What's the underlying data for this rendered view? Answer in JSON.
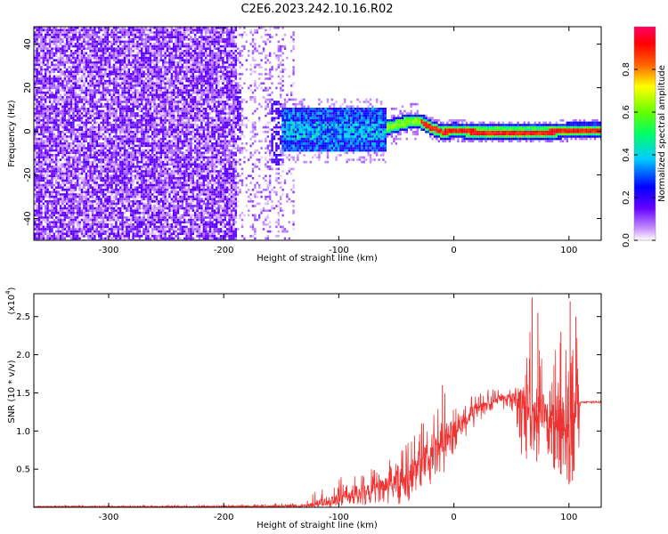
{
  "title": "C2E6.2023.242.10.16.R02",
  "chart_data": [
    {
      "type": "heatmap",
      "name": "spectrogram",
      "xlabel": "Height of straight line (km)",
      "ylabel": "Frequency (Hz)",
      "xlim": [
        -365,
        128
      ],
      "ylim": [
        -50,
        48
      ],
      "xticks": [
        -300,
        -200,
        -100,
        0,
        100
      ],
      "yticks": [
        -40,
        -20,
        0,
        20,
        40
      ],
      "colorbar": {
        "label": "Normalized spectral amplitude",
        "range": [
          0,
          1
        ],
        "ticks": [
          0.0,
          0.2,
          0.4,
          0.6,
          0.8
        ],
        "tick_labels": [
          "0.0",
          "0.2",
          "0.4",
          "0.6",
          "0.8"
        ],
        "colormap": [
          "#ffffff",
          "#cc99ff",
          "#6600ff",
          "#0000ff",
          "#00ccff",
          "#00ff66",
          "#66ff00",
          "#ffff00",
          "#ff6600",
          "#ff0000",
          "#ff0066"
        ]
      },
      "regions": [
        {
          "x": [
            -365,
            -190
          ],
          "description_values": {
            "freq_spread": [
              -50,
              48
            ],
            "amplitude": [
              0.05,
              0.3
            ]
          }
        },
        {
          "x": [
            -190,
            -130
          ],
          "description_values": {
            "freq_spread": [
              -50,
              48
            ],
            "amplitude": [
              0.02,
              0.3
            ]
          }
        },
        {
          "x": [
            -150,
            -60
          ],
          "description_values": {
            "freq_center": 0,
            "freq_halfwidth": 10,
            "amplitude": [
              0.2,
              0.55
            ]
          }
        },
        {
          "x": [
            -60,
            128
          ],
          "description_values": {
            "freq_center": 1,
            "freq_halfwidth": 3,
            "amplitude": [
              0.3,
              0.98
            ]
          }
        }
      ],
      "ridge": [
        {
          "x": -60,
          "y": 2
        },
        {
          "x": -40,
          "y": 5
        },
        {
          "x": -30,
          "y": 5
        },
        {
          "x": -20,
          "y": 2
        },
        {
          "x": -10,
          "y": 0
        },
        {
          "x": 0,
          "y": 1
        },
        {
          "x": 20,
          "y": 0
        },
        {
          "x": 40,
          "y": 0
        },
        {
          "x": 60,
          "y": 0
        },
        {
          "x": 80,
          "y": 0
        },
        {
          "x": 100,
          "y": 1
        },
        {
          "x": 128,
          "y": 1
        }
      ]
    },
    {
      "type": "line",
      "name": "snr",
      "xlabel": "Height of straight line (km)",
      "ylabel": "SNR (10 * v/v)",
      "multiplier": "(x10",
      "multiplier_exp": "4",
      "xlim": [
        -365,
        128
      ],
      "ylim": [
        0,
        2.8
      ],
      "xticks": [
        -300,
        -200,
        -100,
        0,
        100
      ],
      "yticks": [
        0.5,
        1.0,
        1.5,
        2.0,
        2.5
      ],
      "ytick_labels": [
        "0.5",
        "1.0",
        "1.5",
        "2.0",
        "2.5"
      ],
      "color": "#ee3333",
      "envelope": [
        {
          "x": -365,
          "y": 0.01,
          "lo": 0.0,
          "hi": 0.02
        },
        {
          "x": -200,
          "y": 0.01,
          "lo": 0.0,
          "hi": 0.03
        },
        {
          "x": -130,
          "y": 0.02,
          "lo": 0.0,
          "hi": 0.06
        },
        {
          "x": -120,
          "y": 0.05,
          "lo": 0.0,
          "hi": 0.25
        },
        {
          "x": -100,
          "y": 0.12,
          "lo": 0.0,
          "hi": 0.4
        },
        {
          "x": -80,
          "y": 0.2,
          "lo": 0.02,
          "hi": 0.45
        },
        {
          "x": -60,
          "y": 0.28,
          "lo": 0.03,
          "hi": 0.6
        },
        {
          "x": -40,
          "y": 0.4,
          "lo": 0.05,
          "hi": 0.9
        },
        {
          "x": -30,
          "y": 0.55,
          "lo": 0.15,
          "hi": 1.05
        },
        {
          "x": -20,
          "y": 0.75,
          "lo": 0.3,
          "hi": 1.2
        },
        {
          "x": -10,
          "y": 0.85,
          "lo": 0.4,
          "hi": 1.6
        },
        {
          "x": 0,
          "y": 1.05,
          "lo": 0.7,
          "hi": 1.35
        },
        {
          "x": 10,
          "y": 1.15,
          "lo": 0.9,
          "hi": 1.4
        },
        {
          "x": 20,
          "y": 1.3,
          "lo": 1.1,
          "hi": 1.5
        },
        {
          "x": 30,
          "y": 1.4,
          "lo": 1.25,
          "hi": 1.55
        },
        {
          "x": 50,
          "y": 1.45,
          "lo": 1.3,
          "hi": 1.55
        },
        {
          "x": 60,
          "y": 1.4,
          "lo": 0.6,
          "hi": 1.6
        },
        {
          "x": 70,
          "y": 1.35,
          "lo": 0.6,
          "hi": 2.75
        },
        {
          "x": 80,
          "y": 1.25,
          "lo": 0.7,
          "hi": 1.7
        },
        {
          "x": 90,
          "y": 1.1,
          "lo": 0.4,
          "hi": 2.3
        },
        {
          "x": 100,
          "y": 1.1,
          "lo": 0.3,
          "hi": 2.7
        },
        {
          "x": 108,
          "y": 1.2,
          "lo": 0.5,
          "hi": 2.2
        },
        {
          "x": 110,
          "y": 1.38,
          "lo": 1.36,
          "hi": 1.4
        },
        {
          "x": 128,
          "y": 1.38,
          "lo": 1.36,
          "hi": 1.4
        }
      ],
      "spikes": [
        {
          "x": -28,
          "y": 1.1
        },
        {
          "x": -10,
          "y": 1.6
        },
        {
          "x": 68,
          "y": 2.75
        },
        {
          "x": 73,
          "y": 2.55
        },
        {
          "x": 93,
          "y": 2.3
        },
        {
          "x": 101,
          "y": 2.7
        },
        {
          "x": 106,
          "y": 2.5
        },
        {
          "x": 100,
          "y": 0.3
        },
        {
          "x": 103,
          "y": 0.35
        },
        {
          "x": 72,
          "y": 0.6
        },
        {
          "x": 85,
          "y": 0.7
        }
      ]
    }
  ]
}
